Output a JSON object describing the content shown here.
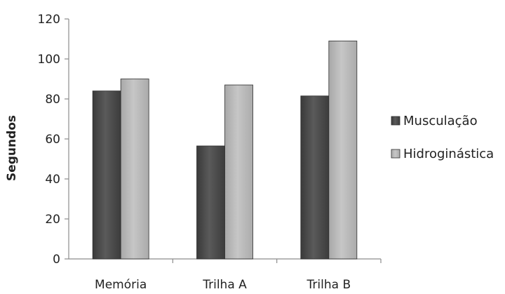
{
  "chart_data": {
    "type": "bar",
    "title": "",
    "xlabel": "",
    "ylabel": "Segundos",
    "ylim": [
      0,
      120
    ],
    "yticks": [
      0,
      20,
      40,
      60,
      80,
      100,
      120
    ],
    "categories": [
      "Memória",
      "Trilha A",
      "Trilha B"
    ],
    "series": [
      {
        "name": "Musculação",
        "values": [
          84,
          56.5,
          81.5
        ],
        "color": "#4a4a4a"
      },
      {
        "name": "Hidroginástica",
        "values": [
          90,
          87,
          109
        ],
        "color": "#b8b8b8"
      }
    ],
    "grid": false,
    "legend_position": "right"
  }
}
